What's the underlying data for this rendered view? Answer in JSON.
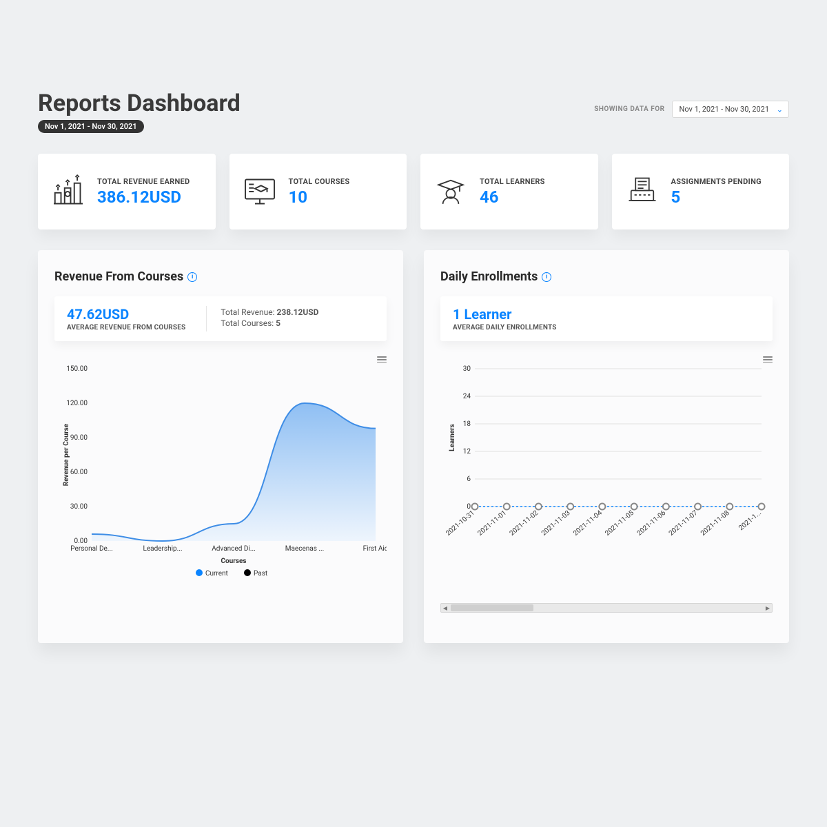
{
  "header": {
    "title": "Reports Dashboard",
    "date_pill": "Nov 1, 2021 - Nov 30, 2021",
    "picker_label": "SHOWING DATA FOR",
    "picker_value": "Nov 1, 2021 - Nov 30, 2021"
  },
  "stats": {
    "revenue": {
      "label": "TOTAL REVENUE EARNED",
      "value": "386.12USD"
    },
    "courses": {
      "label": "TOTAL COURSES",
      "value": "10"
    },
    "learners": {
      "label": "TOTAL LEARNERS",
      "value": "46"
    },
    "assignments": {
      "label": "ASSIGNMENTS PENDING",
      "value": "5"
    }
  },
  "colors": {
    "accent": "#0a84ff",
    "card_bg": "#ffffff",
    "panel_bg": "#fbfbfc",
    "page_bg": "#eef0f2",
    "text_primary": "#333333",
    "grid": "#e0e0e0"
  },
  "revenue_chart": {
    "title": "Revenue From Courses",
    "avg_value": "47.62USD",
    "avg_label": "AVERAGE REVENUE FROM COURSES",
    "total_revenue_label": "Total Revenue:",
    "total_revenue_value": "238.12USD",
    "total_courses_label": "Total Courses:",
    "total_courses_value": "5",
    "type": "area",
    "x_axis_label": "Courses",
    "y_axis_label": "Revenue per Course",
    "categories": [
      "Personal De...",
      "Leadership...",
      "Advanced Di...",
      "Maecenas ...",
      "First Aid"
    ],
    "values": [
      6,
      0,
      15,
      120,
      98
    ],
    "ylim": [
      0,
      150
    ],
    "ytick_step": 30,
    "line_color": "#3e8de6",
    "area_gradient_top": "#8fbff3",
    "area_gradient_bottom": "#eef5fd",
    "legend": [
      {
        "label": "Current",
        "color": "#0a84ff"
      },
      {
        "label": "Past",
        "color": "#000000"
      }
    ]
  },
  "enroll_chart": {
    "title": "Daily Enrollments",
    "avg_value": "1 Learner",
    "avg_label": "AVERAGE DAILY ENROLLMENTS",
    "type": "line",
    "y_axis_label": "Learners",
    "categories": [
      "2021-10-31",
      "2021-11-01",
      "2021-11-02",
      "2021-11-03",
      "2021-11-04",
      "2021-11-05",
      "2021-11-06",
      "2021-11-07",
      "2021-11-08",
      "2021-1..."
    ],
    "values": [
      0,
      0,
      0,
      0,
      0,
      0,
      0,
      0,
      0,
      0
    ],
    "ylim": [
      0,
      30
    ],
    "ytick_step": 6,
    "line_color": "#0a84ff",
    "line_dash": "3,3",
    "marker_fill": "#ffffff",
    "marker_stroke": "#888888",
    "marker_radius": 4.5,
    "grid_color": "#e0e0e0"
  }
}
